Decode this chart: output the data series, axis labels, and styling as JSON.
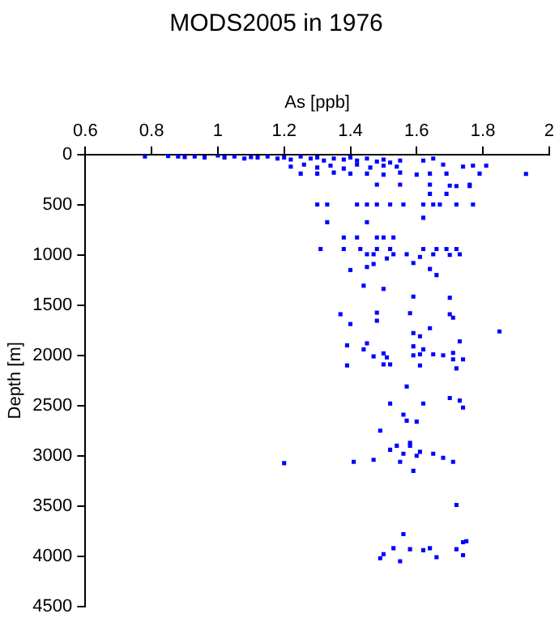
{
  "chart_data": {
    "type": "scatter",
    "title": "MODS2005 in 1976",
    "xlabel": "As [ppb]",
    "ylabel": "Depth [m]",
    "xlim": [
      0.6,
      2
    ],
    "xticks": [
      0.6,
      0.8,
      1,
      1.2,
      1.4,
      1.6,
      1.8,
      2
    ],
    "ylim": [
      4500,
      0
    ],
    "yticks": [
      0,
      500,
      1000,
      1500,
      2000,
      2500,
      3000,
      3500,
      4000,
      4500
    ],
    "grid": false,
    "legend": false,
    "marker": "square",
    "series": [
      {
        "color": "#0000ff",
        "x": [
          0.78,
          0.85,
          0.88,
          0.9,
          0.93,
          0.96,
          1.0,
          1.02,
          1.05,
          1.08,
          1.1,
          1.12,
          1.15,
          1.18,
          1.2,
          1.22,
          1.25,
          1.28,
          1.3,
          1.32,
          1.35,
          1.38,
          1.4,
          1.42,
          1.45,
          1.48,
          1.5,
          1.52,
          1.55,
          1.62,
          1.65,
          1.22,
          1.26,
          1.3,
          1.34,
          1.38,
          1.42,
          1.46,
          1.5,
          1.54,
          1.68,
          1.74,
          1.77,
          1.81,
          1.25,
          1.3,
          1.35,
          1.4,
          1.45,
          1.5,
          1.55,
          1.6,
          1.64,
          1.69,
          1.79,
          1.93,
          1.48,
          1.55,
          1.64,
          1.7,
          1.76,
          1.72,
          1.76,
          1.69,
          1.64,
          1.3,
          1.33,
          1.42,
          1.45,
          1.48,
          1.52,
          1.56,
          1.62,
          1.65,
          1.67,
          1.72,
          1.77,
          1.33,
          1.45,
          1.62,
          1.38,
          1.42,
          1.48,
          1.5,
          1.53,
          1.31,
          1.38,
          1.43,
          1.48,
          1.52,
          1.62,
          1.66,
          1.69,
          1.72,
          1.45,
          1.47,
          1.51,
          1.53,
          1.57,
          1.61,
          1.65,
          1.7,
          1.73,
          1.4,
          1.45,
          1.47,
          1.59,
          1.64,
          1.66,
          1.44,
          1.5,
          1.59,
          1.7,
          1.37,
          1.48,
          1.58,
          1.7,
          1.48,
          1.71,
          1.4,
          1.85,
          1.64,
          1.59,
          1.61,
          1.73,
          1.39,
          1.45,
          1.44,
          1.59,
          1.62,
          1.47,
          1.5,
          1.51,
          1.59,
          1.61,
          1.65,
          1.68,
          1.71,
          1.71,
          1.74,
          1.39,
          1.52,
          1.5,
          1.61,
          1.72,
          1.57,
          1.52,
          1.62,
          1.7,
          1.73,
          1.74,
          1.56,
          1.57,
          1.6,
          1.49,
          1.58,
          1.54,
          1.52,
          1.58,
          1.56,
          1.6,
          1.61,
          1.65,
          1.41,
          1.47,
          1.55,
          1.68,
          1.71,
          1.2,
          1.59,
          1.72,
          1.56,
          1.53,
          1.58,
          1.5,
          1.49,
          1.55,
          1.62,
          1.64,
          1.66,
          1.72,
          1.74,
          1.75,
          1.74
        ],
        "values": [
          20,
          15,
          20,
          25,
          20,
          30,
          10,
          30,
          20,
          40,
          25,
          30,
          20,
          40,
          30,
          50,
          20,
          40,
          30,
          60,
          40,
          50,
          30,
          60,
          40,
          70,
          50,
          80,
          60,
          60,
          40,
          120,
          100,
          130,
          110,
          140,
          100,
          130,
          110,
          120,
          100,
          120,
          110,
          110,
          190,
          190,
          180,
          190,
          190,
          200,
          180,
          200,
          190,
          190,
          190,
          193,
          300,
          300,
          300,
          310,
          300,
          314,
          314,
          392,
          392,
          497,
          497,
          497,
          497,
          497,
          497,
          497,
          497,
          497,
          497,
          497,
          497,
          674,
          674,
          630,
          826,
          826,
          826,
          826,
          826,
          941,
          941,
          941,
          941,
          941,
          941,
          941,
          941,
          941,
          993,
          993,
          1035,
          993,
          993,
          1020,
          993,
          1000,
          993,
          1150,
          1120,
          1090,
          1080,
          1140,
          1200,
          1306,
          1338,
          1415,
          1426,
          1590,
          1575,
          1580,
          1590,
          1655,
          1625,
          1688,
          1762,
          1730,
          1778,
          1810,
          1860,
          1900,
          1880,
          1940,
          1910,
          1940,
          2010,
          1980,
          2020,
          2000,
          1990,
          1990,
          2000,
          1975,
          2040,
          2040,
          2100,
          2090,
          2090,
          2100,
          2130,
          2310,
          2480,
          2480,
          2425,
          2450,
          2520,
          2590,
          2650,
          2660,
          2750,
          2870,
          2900,
          2940,
          2900,
          2980,
          3000,
          2960,
          2980,
          3060,
          3040,
          3060,
          3020,
          3060,
          3073,
          3150,
          3490,
          3780,
          3920,
          3930,
          3980,
          4020,
          4050,
          3940,
          3920,
          4010,
          3930,
          3860,
          3850,
          3990
        ]
      }
    ]
  }
}
